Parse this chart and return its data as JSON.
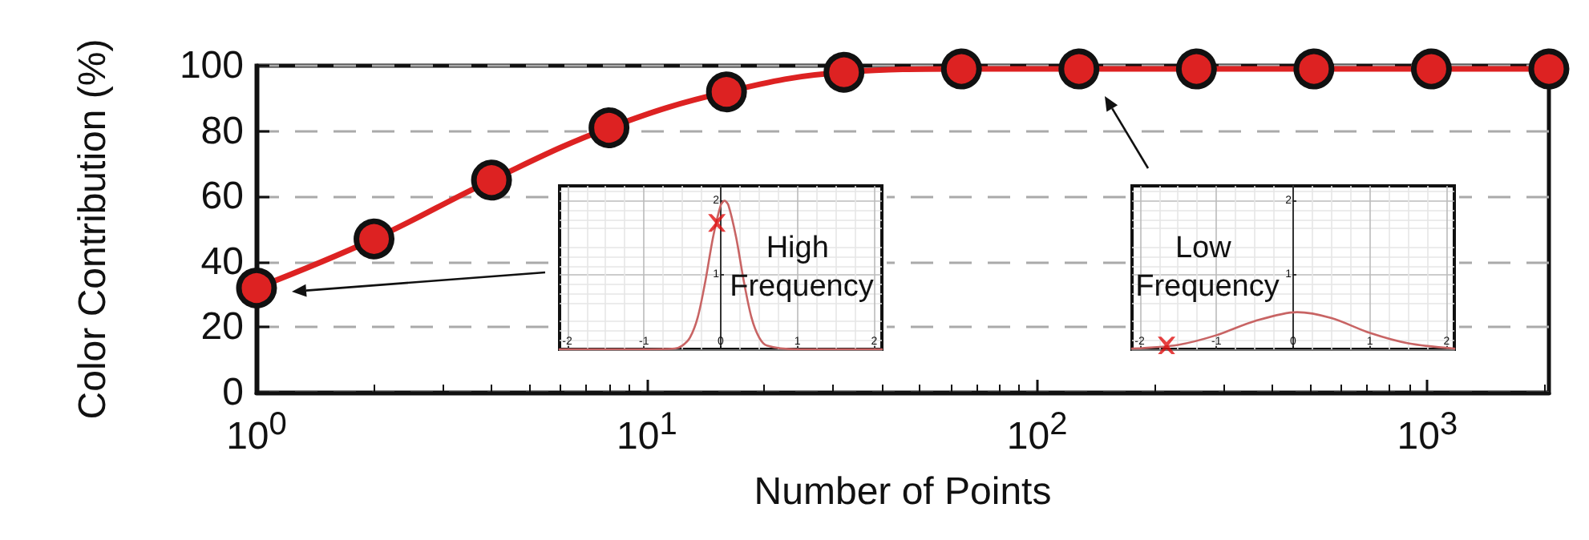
{
  "chart_data": [
    {
      "type": "line",
      "xlabel": "Number of Points",
      "ylabel": "Color Contribution (%)",
      "x": [
        1,
        2,
        4,
        8,
        16,
        32,
        64,
        128,
        256,
        512,
        1024,
        2048
      ],
      "series": [
        {
          "color": "#dd2222",
          "values": [
            32,
            47,
            65,
            81,
            92,
            98,
            99,
            99,
            99,
            99,
            99,
            99
          ]
        }
      ],
      "log": "x",
      "xlim": [
        1,
        2048
      ],
      "xticks": [
        {
          "value": 1,
          "label": "10$^{0}$"
        },
        {
          "value": 10,
          "label": "10$^{1}$"
        },
        {
          "value": 100,
          "label": "10$^{2}$"
        },
        {
          "value": 1000,
          "label": "10$^{3}$"
        }
      ],
      "ylim": [
        0,
        100
      ],
      "yticks": [
        0,
        20,
        40,
        60,
        80,
        100
      ],
      "grid": "y",
      "marker": "circle",
      "line_style": "solid"
    },
    {
      "type": "line",
      "series": [
        {
          "color": "#c86464",
          "x": [
            -2.1,
            -1,
            -0.6,
            -0.5,
            -0.4,
            -0.3,
            -0.2,
            -0.1,
            0,
            0.05,
            0.1,
            0.2,
            0.3,
            0.4,
            0.5,
            0.6,
            1,
            2.1
          ],
          "values": [
            0,
            0,
            0.01,
            0.05,
            0.16,
            0.43,
            0.92,
            1.51,
            1.94,
            2,
            1.94,
            1.51,
            0.92,
            0.43,
            0.16,
            0.05,
            0,
            0
          ]
        },
        {
          "type": "scatter",
          "marker": "cross",
          "color": "#e01010",
          "x": [
            -0.05
          ],
          "values": [
            1.7
          ]
        }
      ],
      "xlim": [
        -2.1,
        2.1
      ],
      "xticks": [
        -2,
        -1,
        0,
        1,
        2
      ],
      "ylim": [
        0,
        2.2
      ],
      "yticks": [
        1,
        2
      ],
      "grid": true,
      "marker": "none",
      "annotations": [
        "High Frequency"
      ]
    },
    {
      "type": "line",
      "series": [
        {
          "color": "#c86464",
          "x": [
            -2.1,
            -1.5,
            -1,
            -0.5,
            0.05,
            0.5,
            1,
            1.5,
            2.1
          ],
          "values": [
            0.01,
            0.06,
            0.19,
            0.38,
            0.5,
            0.42,
            0.22,
            0.08,
            0.01
          ]
        },
        {
          "type": "scatter",
          "marker": "cross",
          "color": "#e01010",
          "x": [
            -1.65
          ],
          "values": [
            0.05
          ]
        }
      ],
      "xlim": [
        -2.1,
        2.1
      ],
      "xticks": [
        -2,
        -1,
        0,
        1,
        2
      ],
      "ylim": [
        0,
        2.2
      ],
      "yticks": [
        1,
        2
      ],
      "grid": true,
      "marker": "none",
      "annotations": [
        "Low Frequency"
      ]
    }
  ]
}
